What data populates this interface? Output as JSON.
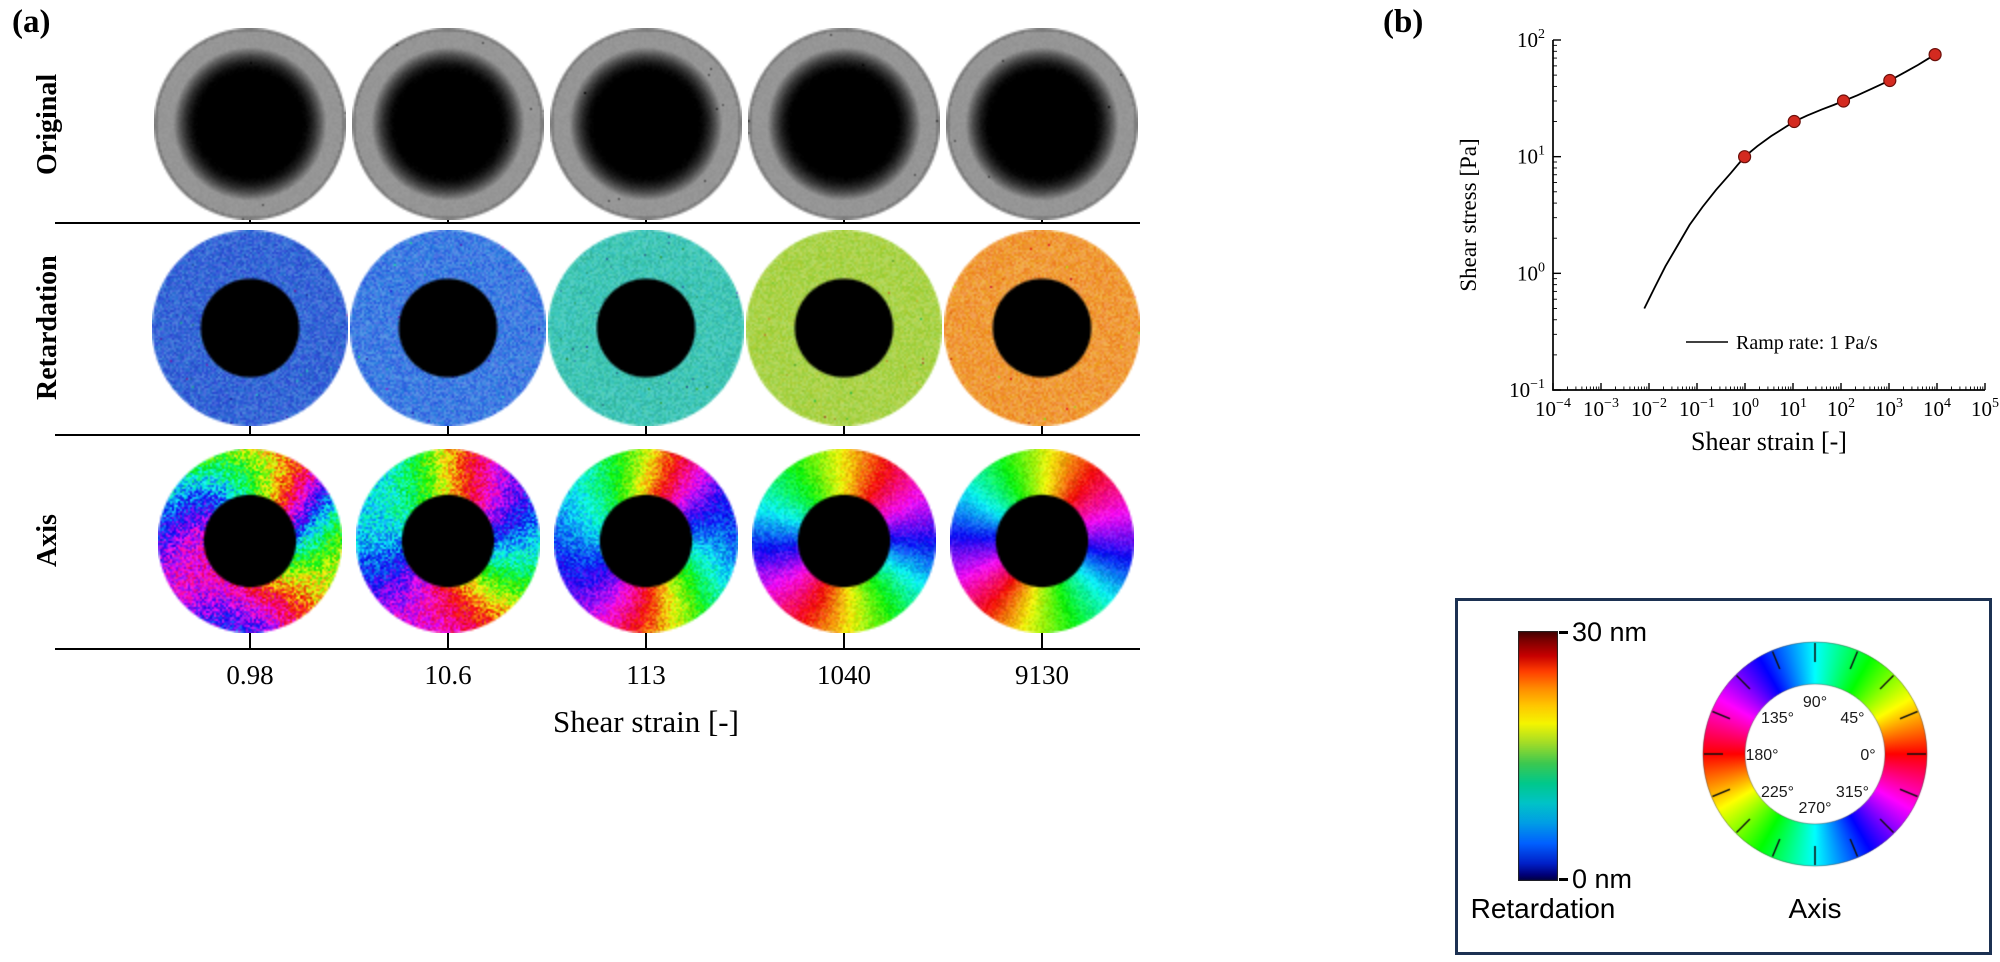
{
  "panel_a": {
    "label": "(a)",
    "rows": [
      {
        "label": "Original",
        "type": "original"
      },
      {
        "label": "Retardation",
        "type": "retardation"
      },
      {
        "label": "Axis",
        "type": "axis"
      }
    ],
    "strain_values": [
      "0.98",
      "10.6",
      "113",
      "1040",
      "9130"
    ],
    "xlabel": "Shear strain [-]",
    "retardation_colors": [
      "#3566d8",
      "#3f7ce2",
      "#3ec8b8",
      "#aad34a",
      "#f09a38"
    ],
    "retardation_hue_noise": [
      16,
      16,
      13,
      11,
      11
    ],
    "axis_hue_offsets": [
      180,
      205,
      225,
      240,
      255
    ],
    "axis_blotch": [
      75,
      55,
      28,
      13,
      5
    ],
    "axis_noise": [
      70,
      55,
      35,
      18,
      9
    ]
  },
  "panel_b": {
    "label": "(b)"
  },
  "chart_data": {
    "type": "line",
    "title": "",
    "xlabel": "Shear strain [-]",
    "ylabel": "Shear stress [Pa]",
    "x_scale": "log",
    "y_scale": "log",
    "xlim": [
      0.0001,
      100000
    ],
    "ylim": [
      0.1,
      100
    ],
    "grid": false,
    "x_tick_labels": [
      "10^-4",
      "10^-3",
      "10^-2",
      "10^-1",
      "10^0",
      "10^1",
      "10^2",
      "10^3",
      "10^4",
      "10^5"
    ],
    "y_tick_labels": [
      "10^-1",
      "10^0",
      "10^1",
      "10^2"
    ],
    "legend": {
      "label": "Ramp rate: 1 Pa/s",
      "position": "lower-right"
    },
    "series": [
      {
        "name": "stress-ramp-curve",
        "type": "line",
        "color": "#000000",
        "x": [
          0.008,
          0.013,
          0.022,
          0.04,
          0.07,
          0.13,
          0.25,
          0.5,
          0.98,
          1.8,
          3.5,
          6.5,
          10.6,
          20,
          40,
          70,
          113,
          220,
          450,
          700,
          1040,
          2000,
          4000,
          6500,
          9130
        ],
        "y": [
          0.5,
          0.75,
          1.15,
          1.75,
          2.6,
          3.7,
          5.2,
          7.2,
          10,
          12.3,
          15,
          17.6,
          20,
          22.6,
          25.4,
          27.7,
          30,
          33.6,
          38.5,
          41.8,
          45,
          52,
          61,
          69,
          75
        ]
      },
      {
        "name": "sampled-strain-points",
        "type": "scatter",
        "color": "#d42a20",
        "edge_color": "#6b0f0a",
        "x": [
          0.98,
          10.6,
          113,
          1040,
          9130
        ],
        "y": [
          10,
          20,
          30,
          45,
          75
        ]
      }
    ]
  },
  "legend": {
    "box_border_color": "#1c3152",
    "colorbar": {
      "max_label": "30 nm",
      "min_label": "0 nm",
      "title": "Retardation",
      "stops": [
        [
          0,
          "#3c0000"
        ],
        [
          0.04,
          "#7f0000"
        ],
        [
          0.1,
          "#c80000"
        ],
        [
          0.16,
          "#ff3c00"
        ],
        [
          0.23,
          "#ff8c00"
        ],
        [
          0.3,
          "#ffc800"
        ],
        [
          0.37,
          "#f5f500"
        ],
        [
          0.45,
          "#a0dc28"
        ],
        [
          0.53,
          "#3cc850"
        ],
        [
          0.61,
          "#00c88c"
        ],
        [
          0.69,
          "#00c3c8"
        ],
        [
          0.77,
          "#009ce6"
        ],
        [
          0.85,
          "#0060ff"
        ],
        [
          0.93,
          "#0020c8"
        ],
        [
          0.975,
          "#000078"
        ],
        [
          1,
          "#000038"
        ]
      ]
    },
    "wheel": {
      "title": "Axis",
      "angle_labels": [
        "0°",
        "45°",
        "90°",
        "135°",
        "180°",
        "225°",
        "270°",
        "315°"
      ]
    }
  }
}
